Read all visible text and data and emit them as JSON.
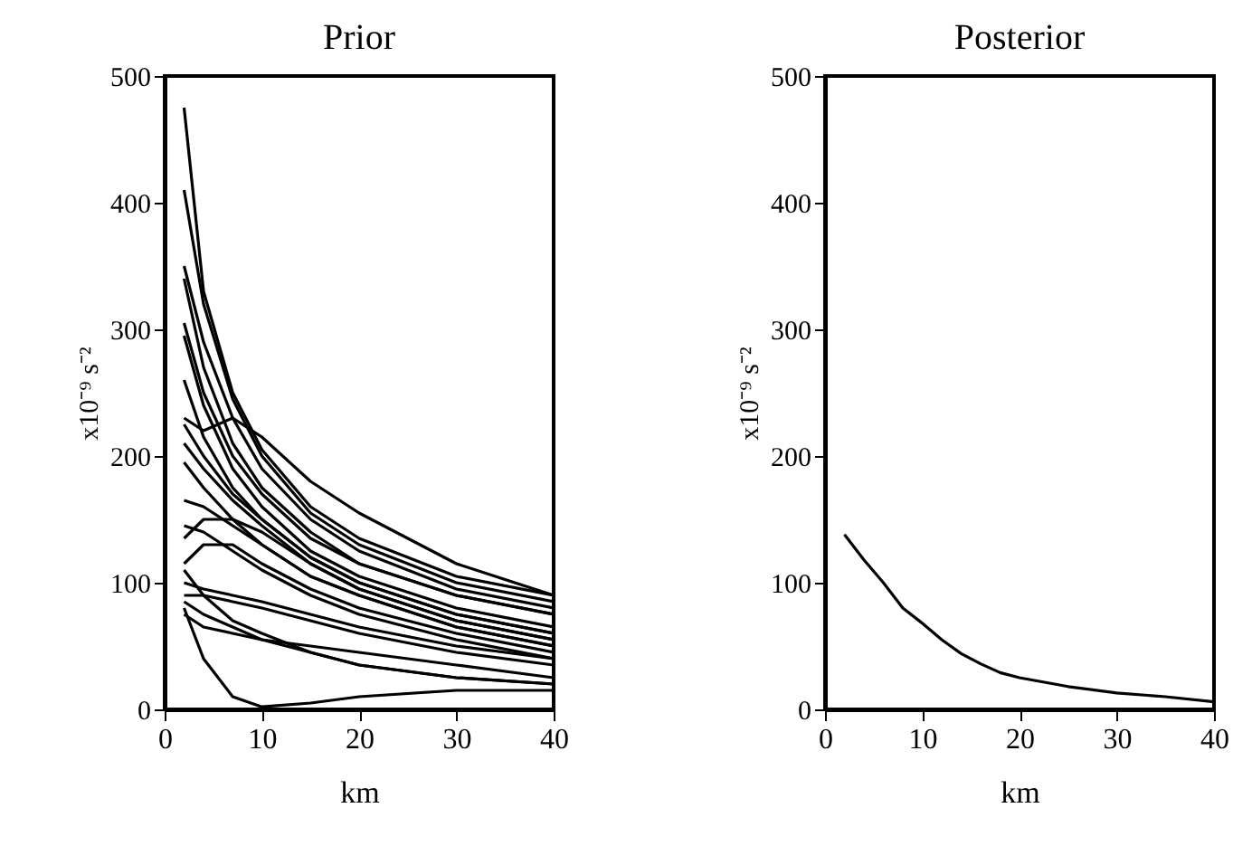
{
  "chart_data": [
    {
      "type": "line",
      "title": "Prior",
      "xlabel": "km",
      "ylabel": "x10⁻⁹ s⁻²",
      "x": [
        2,
        4,
        7,
        10,
        15,
        20,
        30,
        40
      ],
      "xlim": [
        0,
        40
      ],
      "ylim": [
        0,
        500
      ],
      "xticks": [
        0,
        10,
        20,
        30,
        40
      ],
      "yticks": [
        0,
        100,
        200,
        300,
        400,
        500
      ],
      "series": [
        {
          "color": "#000000",
          "values": [
            475,
            330,
            250,
            205,
            160,
            135,
            105,
            90
          ]
        },
        {
          "color": "#000000",
          "values": [
            410,
            320,
            245,
            200,
            155,
            130,
            100,
            85
          ]
        },
        {
          "color": "#000000",
          "values": [
            350,
            290,
            230,
            190,
            150,
            125,
            95,
            80
          ]
        },
        {
          "color": "#000000",
          "values": [
            340,
            270,
            210,
            175,
            140,
            115,
            90,
            75
          ]
        },
        {
          "color": "#000000",
          "values": [
            305,
            250,
            200,
            170,
            135,
            115,
            90,
            75
          ]
        },
        {
          "color": "#000000",
          "values": [
            295,
            240,
            190,
            160,
            125,
            105,
            80,
            65
          ]
        },
        {
          "color": "#000000",
          "values": [
            260,
            215,
            175,
            150,
            120,
            100,
            75,
            60
          ]
        },
        {
          "color": "#000000",
          "values": [
            230,
            220,
            230,
            215,
            180,
            155,
            115,
            90
          ]
        },
        {
          "color": "#000000",
          "values": [
            225,
            200,
            170,
            150,
            120,
            100,
            75,
            60
          ]
        },
        {
          "color": "#000000",
          "values": [
            210,
            190,
            165,
            145,
            115,
            95,
            70,
            55
          ]
        },
        {
          "color": "#000000",
          "values": [
            195,
            175,
            150,
            130,
            105,
            90,
            65,
            50
          ]
        },
        {
          "color": "#000000",
          "values": [
            165,
            160,
            145,
            130,
            105,
            90,
            65,
            50
          ]
        },
        {
          "color": "#000000",
          "values": [
            145,
            140,
            125,
            110,
            90,
            75,
            55,
            40
          ]
        },
        {
          "color": "#000000",
          "values": [
            135,
            150,
            150,
            140,
            115,
            95,
            70,
            55
          ]
        },
        {
          "color": "#000000",
          "values": [
            115,
            130,
            130,
            115,
            95,
            80,
            60,
            45
          ]
        },
        {
          "color": "#000000",
          "values": [
            100,
            95,
            90,
            85,
            75,
            65,
            50,
            40
          ]
        },
        {
          "color": "#000000",
          "values": [
            90,
            90,
            85,
            80,
            70,
            60,
            45,
            35
          ]
        },
        {
          "color": "#000000",
          "values": [
            85,
            75,
            65,
            55,
            45,
            35,
            25,
            20
          ]
        },
        {
          "color": "#000000",
          "values": [
            80,
            40,
            10,
            2,
            5,
            10,
            15,
            15
          ]
        },
        {
          "color": "#000000",
          "values": [
            110,
            90,
            70,
            60,
            45,
            35,
            25,
            20
          ]
        },
        {
          "color": "#000000",
          "values": [
            75,
            65,
            60,
            55,
            50,
            45,
            35,
            25
          ]
        }
      ]
    },
    {
      "type": "line",
      "title": "Posterior",
      "xlabel": "km",
      "ylabel": "x10⁻⁹ s⁻²",
      "x": [
        2,
        4,
        6,
        8,
        10,
        12,
        14,
        16,
        18,
        20,
        25,
        30,
        35,
        40
      ],
      "xlim": [
        0,
        40
      ],
      "ylim": [
        0,
        500
      ],
      "xticks": [
        0,
        10,
        20,
        30,
        40
      ],
      "yticks": [
        0,
        100,
        200,
        300,
        400,
        500
      ],
      "series": [
        {
          "color": "#000000",
          "values": [
            138,
            118,
            100,
            80,
            68,
            55,
            44,
            36,
            29,
            25,
            18,
            13,
            10,
            6
          ]
        }
      ]
    }
  ]
}
